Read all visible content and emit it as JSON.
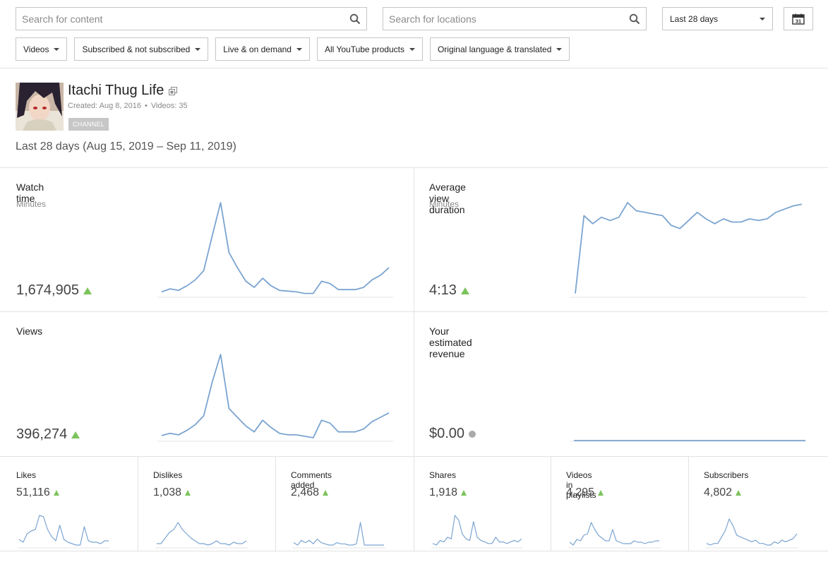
{
  "filters": {
    "content_search_placeholder": "Search for content",
    "location_search_placeholder": "Search for locations",
    "date_range": "Last 28 days",
    "calendar_day": "31",
    "chips": [
      {
        "label": "Videos"
      },
      {
        "label": "Subscribed & not subscribed"
      },
      {
        "label": "Live & on demand"
      },
      {
        "label": "All YouTube products"
      },
      {
        "label": "Original language & translated"
      }
    ]
  },
  "channel": {
    "name": "Itachi Thug Life",
    "created": "Created: Aug 8, 2016",
    "videos": "Videos: 35",
    "badge": "CHANNEL",
    "range": "Last 28 days (Aug 15, 2019 – Sep 11, 2019)"
  },
  "colors": {
    "line": "#7ba4d1",
    "up": "#7cc35c",
    "neutral": "#aaaaaa"
  },
  "metrics": {
    "watch_time": {
      "title": "Watch time",
      "unit": "Minutes",
      "value": "1,674,905",
      "trend": "up",
      "series": [
        1,
        3,
        2,
        5,
        9,
        15,
        38,
        60,
        27,
        17,
        8,
        4,
        10,
        5,
        2,
        1.5,
        1,
        0,
        0,
        8,
        6.5,
        2.5,
        2.5,
        2.5,
        4,
        9,
        12,
        17
      ]
    },
    "avg_duration": {
      "title": "Average view duration",
      "unit": "Minutes",
      "value": "4:13",
      "trend": "up",
      "series": [
        0,
        48,
        43,
        47,
        45,
        47,
        56,
        51,
        50,
        49,
        48,
        42,
        40,
        45,
        50,
        46,
        43,
        46,
        44,
        44,
        46,
        45,
        46,
        50,
        52,
        54,
        55
      ]
    },
    "views": {
      "title": "Views",
      "value": "396,274",
      "trend": "up",
      "series": [
        1.5,
        3,
        2,
        5,
        9,
        15,
        38,
        57,
        20,
        14,
        8,
        4,
        12,
        7,
        3,
        2,
        2,
        1,
        0,
        12,
        10,
        4,
        4,
        4,
        6,
        11,
        14,
        17
      ]
    },
    "revenue": {
      "title": "Your estimated revenue",
      "value": "$0.00",
      "trend": "neutral",
      "series": [
        0,
        0,
        0,
        0,
        0,
        0,
        0,
        0,
        0,
        0,
        0,
        0,
        0,
        0,
        0,
        0,
        0,
        0,
        0,
        0,
        0,
        0,
        0,
        0,
        0,
        0,
        0,
        0
      ]
    }
  },
  "small_metrics": [
    {
      "title": "Likes",
      "value": "51,116",
      "trend": "up",
      "series": [
        5,
        3,
        9,
        11,
        12,
        22,
        21,
        12,
        7,
        4,
        15,
        5,
        3,
        2,
        1,
        1,
        14,
        4,
        3,
        3,
        2,
        4,
        4
      ]
    },
    {
      "title": "Dislikes",
      "value": "1,038",
      "trend": "up",
      "series": [
        2,
        2,
        6,
        10,
        12,
        17,
        12,
        9,
        6,
        4,
        2,
        2,
        1,
        2,
        4,
        2,
        2,
        1,
        3,
        2,
        2,
        4
      ]
    },
    {
      "title": "Comments added",
      "value": "2,468",
      "trend": "up",
      "series": [
        3,
        1,
        5,
        3,
        5,
        2,
        6,
        3,
        2,
        1,
        1,
        3,
        2,
        2,
        1,
        1,
        2,
        20,
        1,
        1,
        1,
        1,
        1,
        1
      ]
    },
    {
      "title": "Shares",
      "value": "1,918",
      "trend": "up",
      "series": [
        2,
        1,
        4,
        3,
        6,
        5,
        20,
        17,
        8,
        5,
        4,
        16,
        6,
        4,
        3,
        2,
        2,
        6,
        3,
        3,
        2,
        3,
        4,
        3,
        5
      ]
    },
    {
      "title": "Videos in playlists",
      "value": "4,295",
      "trend": "up",
      "series": [
        3,
        1,
        5,
        4,
        8,
        9,
        17,
        12,
        8,
        6,
        4,
        4,
        12,
        4,
        3,
        2,
        2,
        2,
        4,
        3,
        3,
        2,
        3,
        3,
        4,
        4
      ]
    },
    {
      "title": "Subscribers",
      "value": "4,802",
      "trend": "up",
      "series": [
        2,
        1,
        2,
        2,
        6,
        10,
        17,
        13,
        7,
        6,
        5,
        4,
        3,
        4,
        2,
        2,
        1,
        1,
        3,
        2,
        4,
        3,
        4,
        5,
        8
      ]
    }
  ]
}
